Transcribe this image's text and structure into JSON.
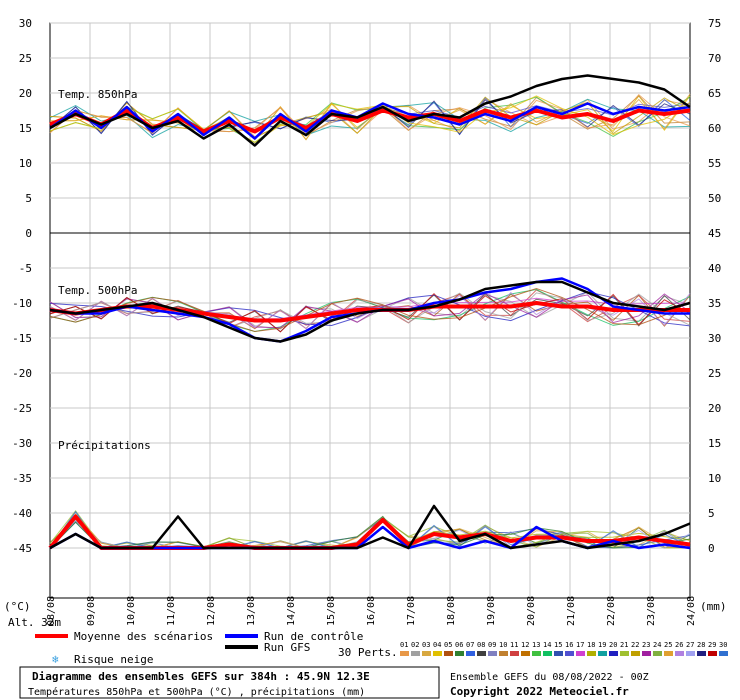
{
  "chart_data": {
    "type": "line",
    "title": "Diagramme des ensembles GEFS sur 384h : 45.9N 12.3E",
    "subtitle": "Températures 850hPa et 500hPa (°C) , précipitations (mm)",
    "x_labels": [
      "09/08",
      "10/08",
      "11/08",
      "12/08",
      "13/08",
      "14/08",
      "15/08",
      "16/08",
      "17/08",
      "18/08",
      "19/08",
      "20/08",
      "21/08",
      "22/08",
      "23/08",
      "24/08"
    ],
    "left_axis": {
      "unit": "(°C)",
      "ticks": [
        30,
        25,
        20,
        15,
        10,
        5,
        0,
        -5,
        -10,
        -15,
        -20,
        -25,
        -30,
        -35,
        -40,
        -45
      ]
    },
    "right_axis": {
      "unit": "(mm)",
      "ticks": [
        75,
        70,
        65,
        60,
        55,
        50,
        45,
        40,
        35,
        30,
        25,
        20,
        15,
        10,
        5,
        0
      ]
    },
    "panels": [
      {
        "name": "Temp. 850hPa",
        "x_labels": [
          "08/08",
          "09/08",
          "10/08",
          "11/08",
          "12/08",
          "13/08",
          "14/08",
          "15/08",
          "16/08",
          "17/08",
          "18/08",
          "19/08",
          "20/08",
          "21/08",
          "22/08",
          "23/08",
          "24/08"
        ],
        "series": [
          {
            "name": "Moyenne des scénarios",
            "values": [
              15.5,
              17.0,
              15.5,
              17.5,
              15.0,
              16.5,
              14.5,
              16.0,
              14.5,
              16.5,
              15.0,
              17.0,
              16.0,
              17.5,
              16.5,
              17.0,
              16.0,
              17.5,
              16.5,
              17.5,
              16.5,
              17.0,
              16.0,
              17.5,
              17.0,
              17.5
            ]
          },
          {
            "name": "Run de contrôle",
            "values": [
              15.0,
              17.5,
              15.0,
              18.0,
              14.5,
              17.0,
              14.0,
              16.5,
              13.5,
              17.0,
              14.5,
              17.5,
              16.5,
              18.5,
              17.0,
              16.5,
              15.5,
              17.0,
              16.0,
              18.0,
              17.0,
              18.5,
              17.0,
              18.0,
              17.5,
              18.0
            ]
          },
          {
            "name": "Run GFS",
            "values": [
              15.0,
              17.0,
              15.5,
              17.0,
              15.0,
              16.0,
              13.5,
              15.5,
              12.5,
              16.0,
              14.0,
              17.0,
              16.5,
              18.0,
              16.0,
              17.0,
              16.5,
              18.5,
              19.5,
              21.0,
              22.0,
              22.5,
              22.0,
              21.5,
              20.5,
              18.0
            ]
          }
        ]
      },
      {
        "name": "Temp. 500hPa",
        "x_labels": [
          "08/08",
          "09/08",
          "10/08",
          "11/08",
          "12/08",
          "13/08",
          "14/08",
          "15/08",
          "16/08",
          "17/08",
          "18/08",
          "19/08",
          "20/08",
          "21/08",
          "22/08",
          "23/08",
          "24/08"
        ],
        "series": [
          {
            "name": "Moyenne des scénarios",
            "values": [
              -11.0,
              -11.5,
              -11.0,
              -10.5,
              -10.5,
              -11.0,
              -11.5,
              -12.0,
              -12.5,
              -12.5,
              -12.0,
              -11.5,
              -11.0,
              -11.0,
              -11.0,
              -10.5,
              -10.5,
              -10.5,
              -10.5,
              -10.0,
              -10.5,
              -10.5,
              -11.0,
              -11.0,
              -11.0,
              -11.0
            ]
          },
          {
            "name": "Run de contrôle",
            "values": [
              -11.0,
              -11.5,
              -11.5,
              -10.5,
              -11.0,
              -11.5,
              -12.0,
              -13.0,
              -15.0,
              -15.5,
              -14.0,
              -12.0,
              -11.5,
              -11.0,
              -11.0,
              -10.0,
              -9.5,
              -8.5,
              -8.0,
              -7.0,
              -6.5,
              -8.0,
              -10.5,
              -11.0,
              -11.5,
              -11.5
            ]
          },
          {
            "name": "Run GFS",
            "values": [
              -11.0,
              -11.5,
              -11.0,
              -10.5,
              -10.0,
              -11.0,
              -12.0,
              -13.5,
              -15.0,
              -15.5,
              -14.5,
              -12.5,
              -11.5,
              -11.0,
              -11.0,
              -10.5,
              -9.5,
              -8.0,
              -7.5,
              -7.0,
              -7.0,
              -8.5,
              -10.0,
              -10.5,
              -11.0,
              -10.0
            ]
          }
        ]
      },
      {
        "name": "Précipitations",
        "x_labels": [
          "08/08",
          "09/08",
          "10/08",
          "11/08",
          "12/08",
          "13/08",
          "14/08",
          "15/08",
          "16/08",
          "17/08",
          "18/08",
          "19/08",
          "20/08",
          "21/08",
          "22/08",
          "23/08",
          "24/08"
        ],
        "series": [
          {
            "name": "Moyenne des scénarios",
            "values": [
              0,
              4.5,
              0,
              0,
              0,
              0,
              0,
              0.5,
              0,
              0,
              0,
              0,
              0.5,
              4.0,
              0.5,
              2.0,
              1.5,
              2.0,
              1.0,
              1.5,
              1.5,
              1.0,
              1.0,
              1.5,
              1.0,
              0.5
            ]
          },
          {
            "name": "Run de contrôle",
            "values": [
              0,
              2.0,
              0,
              0,
              0,
              0,
              0,
              0,
              0,
              0,
              0,
              0,
              0,
              3.0,
              0,
              1.0,
              0,
              1.0,
              0,
              3.0,
              1.0,
              0,
              1.0,
              0,
              0.5,
              0
            ]
          },
          {
            "name": "Run GFS",
            "values": [
              0,
              2.0,
              0,
              0,
              0,
              4.5,
              0,
              0,
              0,
              0,
              0,
              0,
              0,
              1.5,
              0,
              6.0,
              1.0,
              2.0,
              0,
              0.5,
              1.0,
              0,
              0.5,
              1.0,
              2.0,
              3.5
            ]
          }
        ]
      }
    ],
    "legend": {
      "mean_label": "Moyenne des scénarios",
      "mean_color": "#ff0000",
      "control_label": "Run de contrôle",
      "control_color": "#0000ff",
      "gfs_label": "Run GFS",
      "gfs_color": "#000000",
      "snow_label": "Risque neige",
      "perts_label": "30 Perts.",
      "pert_ids": [
        "01",
        "02",
        "03",
        "04",
        "05",
        "06",
        "07",
        "08",
        "09",
        "10",
        "11",
        "12",
        "13",
        "14",
        "15",
        "16",
        "17",
        "18",
        "19",
        "20",
        "21",
        "22",
        "23",
        "24",
        "25",
        "26",
        "27",
        "28",
        "29",
        "30"
      ],
      "pert_colors": [
        "#e89848",
        "#a0a0a0",
        "#d8a840",
        "#e0c000",
        "#b05010",
        "#308030",
        "#3060e0",
        "#404040",
        "#8080c0",
        "#c08030",
        "#d04040",
        "#c07000",
        "#40c040",
        "#10c060",
        "#3050b0",
        "#5050d0",
        "#d040d0",
        "#b0b000",
        "#10a0a0",
        "#2020c0",
        "#a0c030",
        "#c0a000",
        "#a020a0",
        "#80b040",
        "#e0a030",
        "#b080e0",
        "#a0a0f0",
        "#202080",
        "#c00000",
        "#3070d0"
      ]
    },
    "alt_label": "Alt. 32m",
    "ensemble_info": "Ensemble GEFS du 08/08/2022 - 00Z",
    "copyright": "Copyright 2022 Meteociel.fr"
  }
}
